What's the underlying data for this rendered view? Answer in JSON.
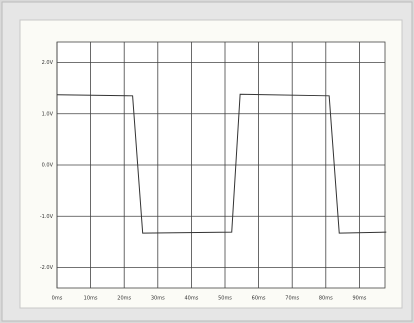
{
  "chart_data": {
    "type": "line",
    "x": [
      0,
      22.5,
      25.5,
      52,
      54.5,
      81,
      84,
      98
    ],
    "series": [
      {
        "color": "#333333",
        "values": [
          1.37,
          1.35,
          -1.33,
          -1.31,
          1.38,
          1.35,
          -1.33,
          -1.31
        ]
      }
    ],
    "xlim": [
      0,
      100
    ],
    "xticks": [
      {
        "value": 0,
        "label": "0ms"
      },
      {
        "value": 10,
        "label": "10ms"
      },
      {
        "value": 20,
        "label": "20ms"
      },
      {
        "value": 30,
        "label": "30ms"
      },
      {
        "value": 40,
        "label": "40ms"
      },
      {
        "value": 50,
        "label": "50ms"
      },
      {
        "value": 60,
        "label": "60ms"
      },
      {
        "value": 70,
        "label": "70ms"
      },
      {
        "value": 80,
        "label": "80ms"
      },
      {
        "value": 90,
        "label": "90ms"
      }
    ],
    "ylim": [
      -2.4,
      2.4
    ],
    "yticks": [
      {
        "value": 2,
        "label": "2.0V"
      },
      {
        "value": 1,
        "label": "1.0V"
      },
      {
        "value": 0,
        "label": "0.0V"
      },
      {
        "value": -1,
        "label": "-1.0V"
      },
      {
        "value": -2,
        "label": "-2.0V"
      }
    ],
    "grid": true
  }
}
